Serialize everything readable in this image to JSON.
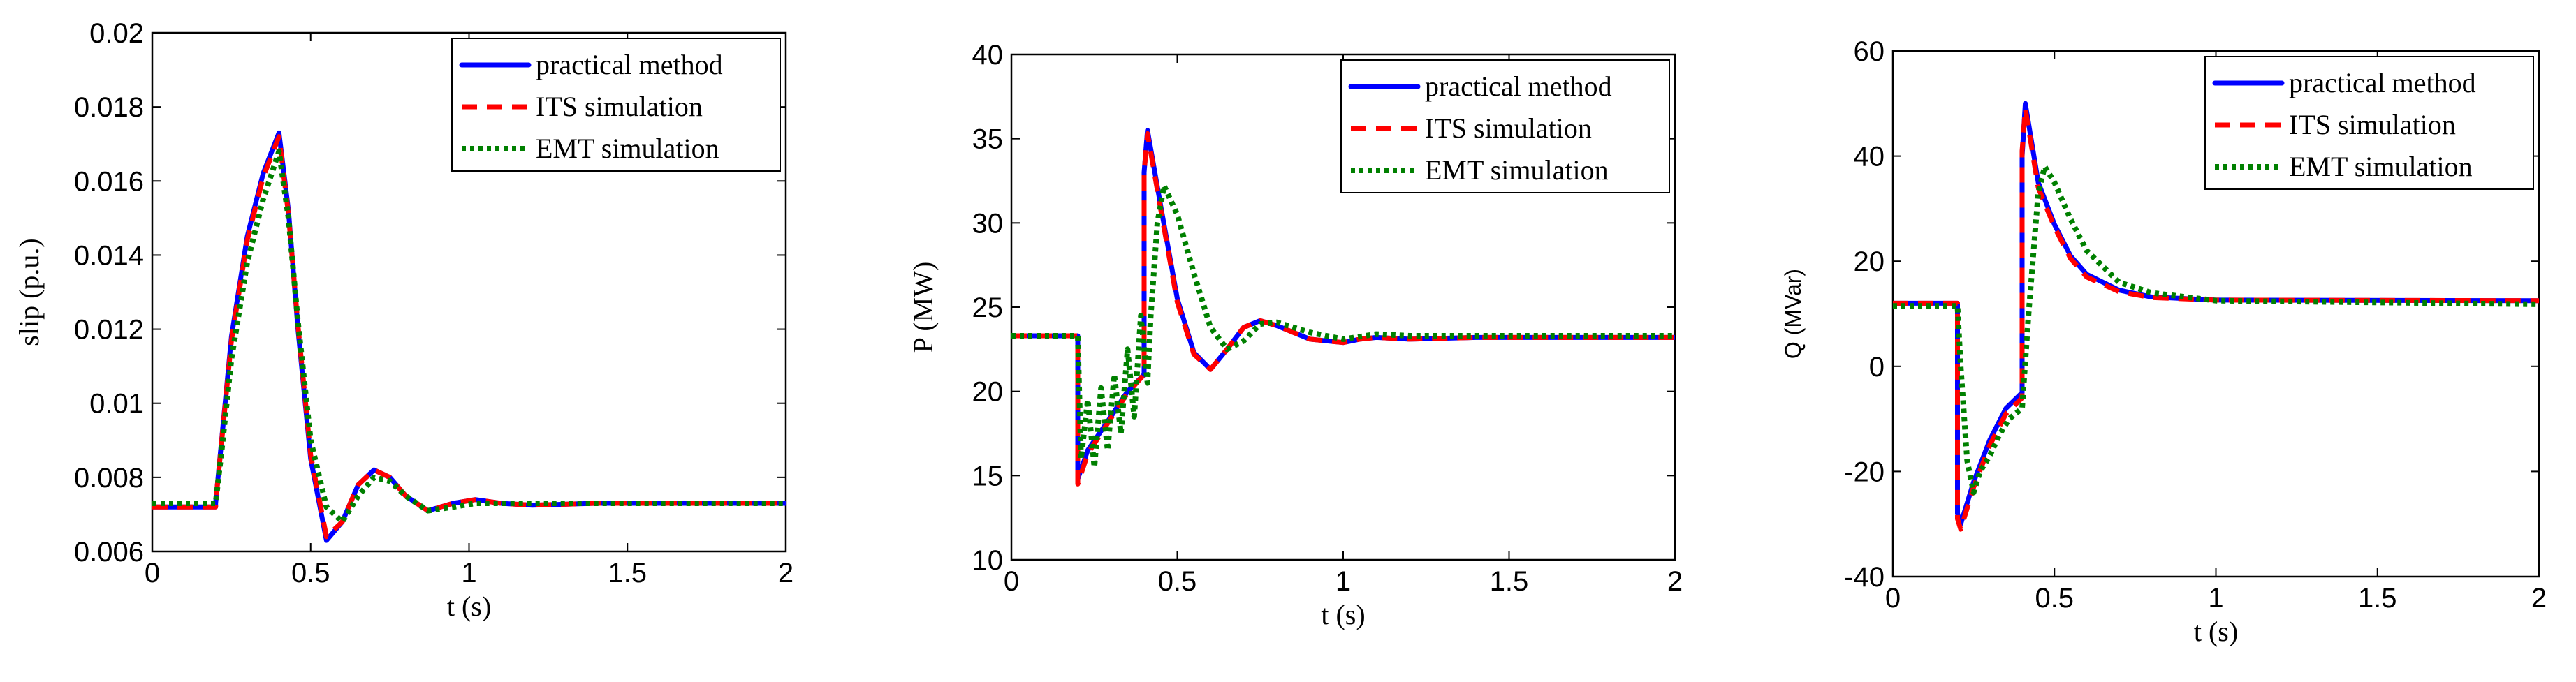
{
  "colors": {
    "practical": "#0000ff",
    "its": "#ff0000",
    "emt": "#008000"
  },
  "chart_data": [
    {
      "type": "line",
      "xlabel": "t (s)",
      "ylabel": "slip (p.u.)",
      "xlim": [
        0,
        2
      ],
      "ylim": [
        0.006,
        0.02
      ],
      "xticks": [
        "0",
        "0.5",
        "1",
        "1.5",
        "2"
      ],
      "yticks": [
        "0.006",
        "0.008",
        "0.01",
        "0.012",
        "0.014",
        "0.016",
        "0.018",
        "0.02"
      ],
      "legend": [
        "practical method",
        "ITS simulation",
        "EMT simulation"
      ],
      "legend_position": "top-right",
      "series": [
        {
          "name": "practical method",
          "style": "solid",
          "color": "#0000ff",
          "points": [
            [
              0,
              0.0072
            ],
            [
              0.2,
              0.0072
            ],
            [
              0.2,
              0.0073
            ],
            [
              0.25,
              0.0118
            ],
            [
              0.3,
              0.0145
            ],
            [
              0.35,
              0.0162
            ],
            [
              0.4,
              0.0173
            ],
            [
              0.43,
              0.0152
            ],
            [
              0.46,
              0.012
            ],
            [
              0.5,
              0.0085
            ],
            [
              0.55,
              0.0063
            ],
            [
              0.6,
              0.0068
            ],
            [
              0.65,
              0.0078
            ],
            [
              0.7,
              0.0082
            ],
            [
              0.75,
              0.008
            ],
            [
              0.8,
              0.0075
            ],
            [
              0.87,
              0.0071
            ],
            [
              0.95,
              0.0073
            ],
            [
              1.02,
              0.0074
            ],
            [
              1.1,
              0.0073
            ],
            [
              1.2,
              0.00725
            ],
            [
              1.4,
              0.0073
            ],
            [
              2,
              0.0073
            ]
          ]
        },
        {
          "name": "ITS simulation",
          "style": "dashed",
          "color": "#ff0000",
          "points": [
            [
              0,
              0.0072
            ],
            [
              0.2,
              0.0072
            ],
            [
              0.2,
              0.0073
            ],
            [
              0.25,
              0.0117
            ],
            [
              0.3,
              0.0144
            ],
            [
              0.35,
              0.0161
            ],
            [
              0.4,
              0.0172
            ],
            [
              0.43,
              0.0151
            ],
            [
              0.46,
              0.0121
            ],
            [
              0.5,
              0.0086
            ],
            [
              0.55,
              0.0064
            ],
            [
              0.6,
              0.0068
            ],
            [
              0.65,
              0.0078
            ],
            [
              0.7,
              0.0082
            ],
            [
              0.75,
              0.008
            ],
            [
              0.8,
              0.0075
            ],
            [
              0.87,
              0.0071
            ],
            [
              0.95,
              0.0073
            ],
            [
              1.02,
              0.0074
            ],
            [
              1.1,
              0.0073
            ],
            [
              1.2,
              0.00725
            ],
            [
              1.4,
              0.0073
            ],
            [
              2,
              0.0073
            ]
          ]
        },
        {
          "name": "EMT simulation",
          "style": "dotted",
          "color": "#008000",
          "points": [
            [
              0,
              0.0073
            ],
            [
              0.2,
              0.0073
            ],
            [
              0.22,
              0.0088
            ],
            [
              0.25,
              0.0112
            ],
            [
              0.3,
              0.0138
            ],
            [
              0.35,
              0.0155
            ],
            [
              0.4,
              0.0168
            ],
            [
              0.43,
              0.015
            ],
            [
              0.46,
              0.0122
            ],
            [
              0.5,
              0.009
            ],
            [
              0.55,
              0.0072
            ],
            [
              0.6,
              0.0068
            ],
            [
              0.65,
              0.0075
            ],
            [
              0.7,
              0.008
            ],
            [
              0.75,
              0.0079
            ],
            [
              0.8,
              0.0075
            ],
            [
              0.87,
              0.0071
            ],
            [
              0.95,
              0.0072
            ],
            [
              1.02,
              0.0073
            ],
            [
              1.1,
              0.0073
            ],
            [
              1.4,
              0.0073
            ],
            [
              2,
              0.0073
            ]
          ]
        }
      ]
    },
    {
      "type": "line",
      "xlabel": "t (s)",
      "ylabel": "P (MW)",
      "xlim": [
        0,
        2
      ],
      "ylim": [
        10,
        40
      ],
      "xticks": [
        "0",
        "0.5",
        "1",
        "1.5",
        "2"
      ],
      "yticks": [
        "10",
        "15",
        "20",
        "25",
        "30",
        "35",
        "40"
      ],
      "legend": [
        "practical method",
        "ITS simulation",
        "EMT simulation"
      ],
      "legend_position": "top-right",
      "series": [
        {
          "name": "practical method",
          "style": "solid",
          "color": "#0000ff",
          "points": [
            [
              0,
              23.3
            ],
            [
              0.2,
              23.3
            ],
            [
              0.2,
              14.8
            ],
            [
              0.23,
              16.5
            ],
            [
              0.3,
              18.5
            ],
            [
              0.35,
              20.0
            ],
            [
              0.4,
              21.0
            ],
            [
              0.4,
              33.0
            ],
            [
              0.41,
              35.5
            ],
            [
              0.45,
              31.0
            ],
            [
              0.5,
              25.5
            ],
            [
              0.55,
              22.3
            ],
            [
              0.6,
              21.3
            ],
            [
              0.65,
              22.5
            ],
            [
              0.7,
              23.8
            ],
            [
              0.75,
              24.2
            ],
            [
              0.8,
              23.9
            ],
            [
              0.9,
              23.1
            ],
            [
              1.0,
              22.9
            ],
            [
              1.05,
              23.1
            ],
            [
              1.1,
              23.2
            ],
            [
              1.2,
              23.1
            ],
            [
              1.4,
              23.2
            ],
            [
              2,
              23.2
            ]
          ]
        },
        {
          "name": "ITS simulation",
          "style": "dashed",
          "color": "#ff0000",
          "points": [
            [
              0,
              23.3
            ],
            [
              0.2,
              23.3
            ],
            [
              0.2,
              14.5
            ],
            [
              0.23,
              16.3
            ],
            [
              0.3,
              18.4
            ],
            [
              0.35,
              19.9
            ],
            [
              0.4,
              21.0
            ],
            [
              0.4,
              33.0
            ],
            [
              0.41,
              35.3
            ],
            [
              0.45,
              30.8
            ],
            [
              0.5,
              25.3
            ],
            [
              0.55,
              22.2
            ],
            [
              0.6,
              21.3
            ],
            [
              0.65,
              22.5
            ],
            [
              0.7,
              23.8
            ],
            [
              0.75,
              24.2
            ],
            [
              0.8,
              23.9
            ],
            [
              0.9,
              23.1
            ],
            [
              1.0,
              22.9
            ],
            [
              1.05,
              23.1
            ],
            [
              1.1,
              23.2
            ],
            [
              1.2,
              23.1
            ],
            [
              1.4,
              23.2
            ],
            [
              2,
              23.2
            ]
          ]
        },
        {
          "name": "EMT simulation",
          "style": "dotted",
          "color": "#008000",
          "points": [
            [
              0,
              23.3
            ],
            [
              0.2,
              23.3
            ],
            [
              0.21,
              16.0
            ],
            [
              0.23,
              19.5
            ],
            [
              0.25,
              15.5
            ],
            [
              0.27,
              20.2
            ],
            [
              0.29,
              16.5
            ],
            [
              0.31,
              21.0
            ],
            [
              0.33,
              17.5
            ],
            [
              0.35,
              22.5
            ],
            [
              0.37,
              18.5
            ],
            [
              0.39,
              24.5
            ],
            [
              0.41,
              20.5
            ],
            [
              0.42,
              24.5
            ],
            [
              0.44,
              30.0
            ],
            [
              0.46,
              32.2
            ],
            [
              0.5,
              30.5
            ],
            [
              0.55,
              27.0
            ],
            [
              0.6,
              23.8
            ],
            [
              0.65,
              22.5
            ],
            [
              0.7,
              23.0
            ],
            [
              0.75,
              24.0
            ],
            [
              0.8,
              24.1
            ],
            [
              0.9,
              23.5
            ],
            [
              1.0,
              23.1
            ],
            [
              1.1,
              23.4
            ],
            [
              1.2,
              23.3
            ],
            [
              1.4,
              23.3
            ],
            [
              2,
              23.3
            ]
          ]
        }
      ]
    },
    {
      "type": "line",
      "xlabel": "t (s)",
      "ylabel": "Q (MVar)",
      "xlim": [
        0,
        2
      ],
      "ylim": [
        -40,
        60
      ],
      "xticks": [
        "0",
        "0.5",
        "1",
        "1.5",
        "2"
      ],
      "yticks": [
        "-40",
        "-20",
        "0",
        "20",
        "40",
        "60"
      ],
      "legend": [
        "practical method",
        "ITS simulation",
        "EMT simulation"
      ],
      "legend_position": "top-right",
      "series": [
        {
          "name": "practical method",
          "style": "solid",
          "color": "#0000ff",
          "points": [
            [
              0,
              12
            ],
            [
              0.2,
              12
            ],
            [
              0.2,
              -28
            ],
            [
              0.21,
              -30
            ],
            [
              0.25,
              -22
            ],
            [
              0.3,
              -14
            ],
            [
              0.35,
              -8
            ],
            [
              0.4,
              -5
            ],
            [
              0.4,
              40
            ],
            [
              0.41,
              50
            ],
            [
              0.45,
              35
            ],
            [
              0.5,
              27
            ],
            [
              0.55,
              21
            ],
            [
              0.6,
              17.5
            ],
            [
              0.7,
              14.5
            ],
            [
              0.8,
              13.2
            ],
            [
              1.0,
              12.6
            ],
            [
              2,
              12.5
            ]
          ]
        },
        {
          "name": "ITS simulation",
          "style": "dashed",
          "color": "#ff0000",
          "points": [
            [
              0,
              12
            ],
            [
              0.2,
              12
            ],
            [
              0.2,
              -29
            ],
            [
              0.21,
              -31
            ],
            [
              0.25,
              -23
            ],
            [
              0.3,
              -15
            ],
            [
              0.35,
              -9
            ],
            [
              0.4,
              -6
            ],
            [
              0.4,
              41
            ],
            [
              0.41,
              49
            ],
            [
              0.45,
              34
            ],
            [
              0.5,
              26.5
            ],
            [
              0.55,
              20.5
            ],
            [
              0.6,
              17
            ],
            [
              0.7,
              14.2
            ],
            [
              0.8,
              13.1
            ],
            [
              1.0,
              12.6
            ],
            [
              2,
              12.5
            ]
          ]
        },
        {
          "name": "EMT simulation",
          "style": "dotted",
          "color": "#008000",
          "points": [
            [
              0,
              11.5
            ],
            [
              0.2,
              11.5
            ],
            [
              0.21,
              0
            ],
            [
              0.23,
              -18
            ],
            [
              0.25,
              -24
            ],
            [
              0.27,
              -20
            ],
            [
              0.3,
              -17
            ],
            [
              0.33,
              -13
            ],
            [
              0.36,
              -10
            ],
            [
              0.4,
              -8
            ],
            [
              0.42,
              10
            ],
            [
              0.45,
              33
            ],
            [
              0.47,
              38
            ],
            [
              0.5,
              35
            ],
            [
              0.55,
              28
            ],
            [
              0.6,
              22
            ],
            [
              0.7,
              16
            ],
            [
              0.8,
              14
            ],
            [
              1.0,
              12.5
            ],
            [
              2,
              11.8
            ]
          ]
        }
      ]
    }
  ]
}
